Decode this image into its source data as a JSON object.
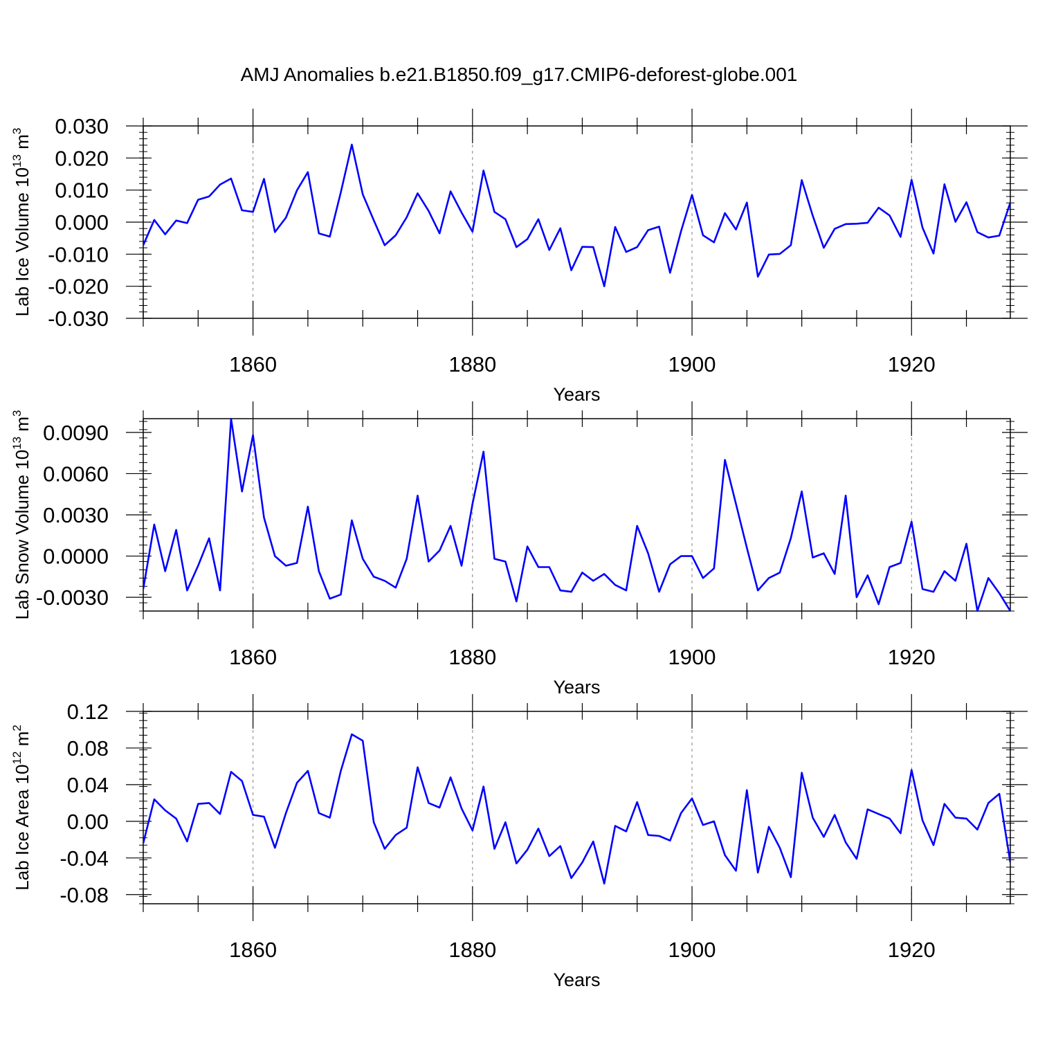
{
  "title": "AMJ Anomalies b.e21.B1850.f09_g17.CMIP6-deforest-globe.001",
  "colors": {
    "line": "#0000ff",
    "axis": "#000000",
    "grid": "#808080"
  },
  "chart_data": [
    {
      "type": "line",
      "ylabel": "Lab Ice Volume 10",
      "ylabel_exp": "13",
      "ylabel_unit": " m",
      "ylabel_unit_exp": "3",
      "xlabel": "Years",
      "xlim": [
        1850,
        1929
      ],
      "ylim": [
        -0.03,
        0.03
      ],
      "y_ticks": [
        "0.030",
        "0.020",
        "0.010",
        "0.000",
        "-0.010",
        "-0.020",
        "-0.030"
      ],
      "y_tick_values": [
        0.03,
        0.02,
        0.01,
        0.0,
        -0.01,
        -0.02,
        -0.03
      ],
      "x_ticks": [
        "1860",
        "1880",
        "1900",
        "1920"
      ],
      "x_tick_values": [
        1860,
        1880,
        1900,
        1920
      ],
      "x": [
        1850,
        1851,
        1852,
        1853,
        1854,
        1855,
        1856,
        1857,
        1858,
        1859,
        1860,
        1861,
        1862,
        1863,
        1864,
        1865,
        1866,
        1867,
        1868,
        1869,
        1870,
        1871,
        1872,
        1873,
        1874,
        1875,
        1876,
        1877,
        1878,
        1879,
        1880,
        1881,
        1882,
        1883,
        1884,
        1885,
        1886,
        1887,
        1888,
        1889,
        1890,
        1891,
        1892,
        1893,
        1894,
        1895,
        1896,
        1897,
        1898,
        1899,
        1900,
        1901,
        1902,
        1903,
        1904,
        1905,
        1906,
        1907,
        1908,
        1909,
        1910,
        1911,
        1912,
        1913,
        1914,
        1915,
        1916,
        1917,
        1918,
        1919,
        1920,
        1921,
        1922,
        1923,
        1924,
        1925,
        1926,
        1927,
        1928,
        1929
      ],
      "series": [
        {
          "name": "Lab Ice Volume",
          "values": [
            -0.0072,
            0.0007,
            -0.0038,
            0.0005,
            -0.0003,
            0.007,
            0.008,
            0.0117,
            0.0136,
            0.0037,
            0.0032,
            0.0135,
            -0.0031,
            0.0014,
            0.0099,
            0.0156,
            -0.0035,
            -0.0045,
            0.0093,
            0.0242,
            0.0087,
            0.0006,
            -0.0072,
            -0.0041,
            0.0015,
            0.009,
            0.0035,
            -0.0035,
            0.0096,
            0.003,
            -0.003,
            0.0161,
            0.0032,
            0.0009,
            -0.0078,
            -0.0053,
            0.0009,
            -0.0087,
            -0.0019,
            -0.015,
            -0.0077,
            -0.0078,
            -0.02,
            -0.0015,
            -0.0093,
            -0.0078,
            -0.0025,
            -0.0014,
            -0.0158,
            -0.0028,
            0.0085,
            -0.0041,
            -0.0063,
            0.0028,
            -0.0023,
            0.0061,
            -0.017,
            -0.0101,
            -0.0099,
            -0.0072,
            0.0131,
            0.002,
            -0.008,
            -0.0021,
            -0.0006,
            -0.0005,
            -0.0002,
            0.0045,
            0.0021,
            -0.0046,
            0.0132,
            -0.0017,
            -0.0098,
            0.0118,
            0.0001,
            0.0062,
            -0.0031,
            -0.0048,
            -0.0042,
            0.0061
          ]
        }
      ]
    },
    {
      "type": "line",
      "ylabel": "Lab Snow Volume 10",
      "ylabel_exp": "13",
      "ylabel_unit": " m",
      "ylabel_unit_exp": "3",
      "xlabel": "Years",
      "xlim": [
        1850,
        1929
      ],
      "ylim": [
        -0.004,
        0.01
      ],
      "y_ticks": [
        "0.0090",
        "0.0060",
        "0.0030",
        "0.0000",
        "-0.0030"
      ],
      "y_tick_values": [
        0.009,
        0.006,
        0.003,
        0.0,
        -0.003
      ],
      "x_ticks": [
        "1860",
        "1880",
        "1900",
        "1920"
      ],
      "x_tick_values": [
        1860,
        1880,
        1900,
        1920
      ],
      "x": [
        1850,
        1851,
        1852,
        1853,
        1854,
        1855,
        1856,
        1857,
        1858,
        1859,
        1860,
        1861,
        1862,
        1863,
        1864,
        1865,
        1866,
        1867,
        1868,
        1869,
        1870,
        1871,
        1872,
        1873,
        1874,
        1875,
        1876,
        1877,
        1878,
        1879,
        1880,
        1881,
        1882,
        1883,
        1884,
        1885,
        1886,
        1887,
        1888,
        1889,
        1890,
        1891,
        1892,
        1893,
        1894,
        1895,
        1896,
        1897,
        1898,
        1899,
        1900,
        1901,
        1902,
        1903,
        1904,
        1905,
        1906,
        1907,
        1908,
        1909,
        1910,
        1911,
        1912,
        1913,
        1914,
        1915,
        1916,
        1917,
        1918,
        1919,
        1920,
        1921,
        1922,
        1923,
        1924,
        1925,
        1926,
        1927,
        1928,
        1929
      ],
      "series": [
        {
          "name": "Lab Snow Volume",
          "values": [
            -0.0024,
            0.0023,
            -0.0011,
            0.0019,
            -0.0025,
            -0.0007,
            0.0013,
            -0.0025,
            0.01,
            0.0047,
            0.0088,
            0.0028,
            0.0,
            -0.0007,
            -0.0005,
            0.0036,
            -0.0011,
            -0.0031,
            -0.0028,
            0.0026,
            -0.0002,
            -0.0015,
            -0.0018,
            -0.0023,
            -0.0002,
            0.0044,
            -0.0004,
            0.0004,
            0.0022,
            -0.0007,
            0.0038,
            0.0076,
            -0.0002,
            -0.0004,
            -0.0033,
            0.0007,
            -0.0008,
            -0.0008,
            -0.0025,
            -0.0026,
            -0.0012,
            -0.0018,
            -0.0013,
            -0.0021,
            -0.0025,
            0.0022,
            0.0002,
            -0.0026,
            -0.0006,
            0.0,
            0.0,
            -0.0016,
            -0.0009,
            0.007,
            0.0038,
            0.0006,
            -0.0025,
            -0.0016,
            -0.0012,
            0.0013,
            0.0047,
            -0.0001,
            0.0002,
            -0.0013,
            0.0044,
            -0.003,
            -0.0014,
            -0.0035,
            -0.0008,
            -0.0005,
            0.0025,
            -0.0024,
            -0.0026,
            -0.0011,
            -0.0018,
            0.0009,
            -0.004,
            -0.0016,
            -0.0027,
            -0.004
          ]
        }
      ]
    },
    {
      "type": "line",
      "ylabel": "Lab Ice Area 10",
      "ylabel_exp": "12",
      "ylabel_unit": " m",
      "ylabel_unit_exp": "2",
      "xlabel": "Years",
      "xlim": [
        1850,
        1929
      ],
      "ylim": [
        -0.09,
        0.12
      ],
      "y_ticks": [
        "0.12",
        "0.08",
        "0.04",
        "0.00",
        "-0.04",
        "-0.08"
      ],
      "y_tick_values": [
        0.12,
        0.08,
        0.04,
        0.0,
        -0.04,
        -0.08
      ],
      "x_ticks": [
        "1860",
        "1880",
        "1900",
        "1920"
      ],
      "x_tick_values": [
        1860,
        1880,
        1900,
        1920
      ],
      "x": [
        1850,
        1851,
        1852,
        1853,
        1854,
        1855,
        1856,
        1857,
        1858,
        1859,
        1860,
        1861,
        1862,
        1863,
        1864,
        1865,
        1866,
        1867,
        1868,
        1869,
        1870,
        1871,
        1872,
        1873,
        1874,
        1875,
        1876,
        1877,
        1878,
        1879,
        1880,
        1881,
        1882,
        1883,
        1884,
        1885,
        1886,
        1887,
        1888,
        1889,
        1890,
        1891,
        1892,
        1893,
        1894,
        1895,
        1896,
        1897,
        1898,
        1899,
        1900,
        1901,
        1902,
        1903,
        1904,
        1905,
        1906,
        1907,
        1908,
        1909,
        1910,
        1911,
        1912,
        1913,
        1914,
        1915,
        1916,
        1917,
        1918,
        1919,
        1920,
        1921,
        1922,
        1923,
        1924,
        1925,
        1926,
        1927,
        1928,
        1929
      ],
      "series": [
        {
          "name": "Lab Ice Area",
          "values": [
            -0.024,
            0.024,
            0.012,
            0.003,
            -0.022,
            0.019,
            0.02,
            0.008,
            0.054,
            0.044,
            0.007,
            0.005,
            -0.029,
            0.009,
            0.042,
            0.055,
            0.009,
            0.004,
            0.055,
            0.095,
            0.088,
            -0.001,
            -0.03,
            -0.015,
            -0.007,
            0.059,
            0.02,
            0.015,
            0.048,
            0.014,
            -0.01,
            0.038,
            -0.03,
            -0.001,
            -0.046,
            -0.031,
            -0.008,
            -0.038,
            -0.027,
            -0.062,
            -0.045,
            -0.022,
            -0.068,
            -0.005,
            -0.011,
            0.021,
            -0.015,
            -0.016,
            -0.021,
            0.009,
            0.025,
            -0.004,
            0.0,
            -0.037,
            -0.054,
            0.034,
            -0.056,
            -0.006,
            -0.029,
            -0.061,
            0.053,
            0.004,
            -0.017,
            0.007,
            -0.023,
            -0.041,
            0.013,
            0.008,
            0.003,
            -0.013,
            0.056,
            0.001,
            -0.026,
            0.019,
            0.004,
            0.003,
            -0.009,
            0.02,
            0.03,
            -0.045
          ]
        }
      ]
    }
  ]
}
